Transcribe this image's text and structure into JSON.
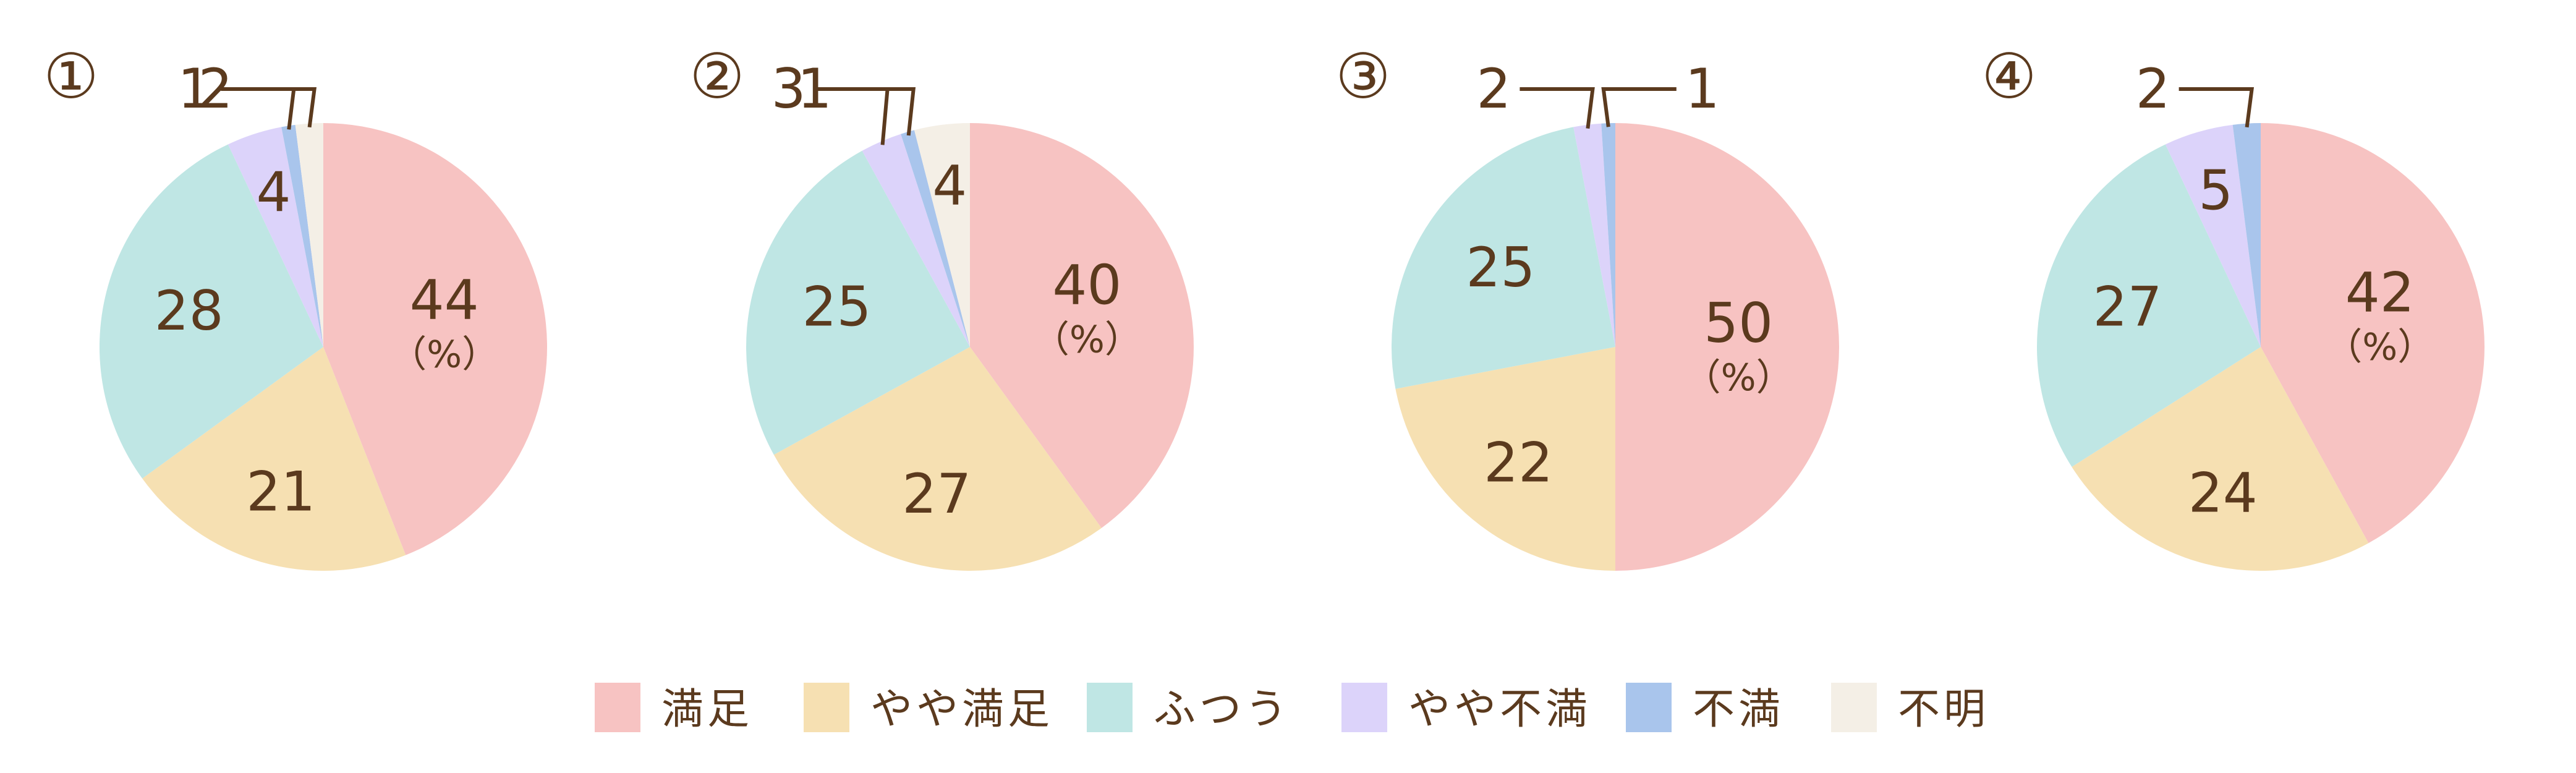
{
  "chart_data": [
    {
      "type": "pie",
      "label": "①",
      "unit": "（%）",
      "slices": [
        {
          "category": "満足",
          "value": 44
        },
        {
          "category": "やや満足",
          "value": 21
        },
        {
          "category": "ふつう",
          "value": 28
        },
        {
          "category": "やや不満",
          "value": 4
        },
        {
          "category": "不満",
          "value": 1
        },
        {
          "category": "不明",
          "value": 2
        }
      ]
    },
    {
      "type": "pie",
      "label": "②",
      "unit": "（%）",
      "slices": [
        {
          "category": "満足",
          "value": 40
        },
        {
          "category": "やや満足",
          "value": 27
        },
        {
          "category": "ふつう",
          "value": 25
        },
        {
          "category": "やや不満",
          "value": 3
        },
        {
          "category": "不満",
          "value": 1
        },
        {
          "category": "不明",
          "value": 4
        }
      ]
    },
    {
      "type": "pie",
      "label": "③",
      "unit": "（%）",
      "slices": [
        {
          "category": "満足",
          "value": 50
        },
        {
          "category": "やや満足",
          "value": 22
        },
        {
          "category": "ふつう",
          "value": 25
        },
        {
          "category": "やや不満",
          "value": 2
        },
        {
          "category": "不満",
          "value": 1
        }
      ]
    },
    {
      "type": "pie",
      "label": "④",
      "unit": "（%）",
      "slices": [
        {
          "category": "満足",
          "value": 42
        },
        {
          "category": "やや満足",
          "value": 24
        },
        {
          "category": "ふつう",
          "value": 27
        },
        {
          "category": "やや不満",
          "value": 5
        },
        {
          "category": "不満",
          "value": 2
        }
      ]
    }
  ],
  "legend": [
    {
      "label": "満足",
      "color": "#f7c3c2"
    },
    {
      "label": "やや満足",
      "color": "#f6e0b2"
    },
    {
      "label": "ふつう",
      "color": "#bfe6e4"
    },
    {
      "label": "やや不満",
      "color": "#dcd3fa"
    },
    {
      "label": "不満",
      "color": "#a9c5ec"
    },
    {
      "label": "不明",
      "color": "#f4efe6"
    }
  ],
  "colors": {
    "text": "#5b3a1e"
  }
}
